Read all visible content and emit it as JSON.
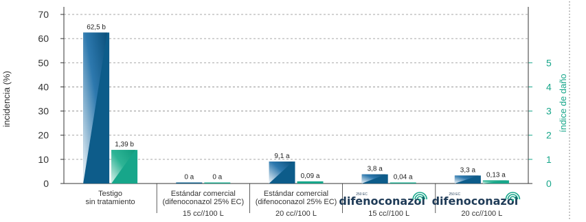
{
  "chart_data": {
    "type": "bar",
    "title": "",
    "ylabel_left": "incidencia (%)",
    "ylabel_right": "índice de daño",
    "ylim_left": [
      0,
      70
    ],
    "ylim_right": [
      0,
      7
    ],
    "yticks_left": [
      "0",
      "10",
      "20",
      "30",
      "40",
      "50",
      "60",
      "70"
    ],
    "yticks_right": [
      "0",
      "1",
      "2",
      "3",
      "4",
      "5"
    ],
    "grid": "dashed horizontal",
    "categories": [
      {
        "lines": [
          "Testigo",
          "sin tratamiento"
        ],
        "brand": "",
        "dose": ""
      },
      {
        "lines": [
          "Estándar comercial",
          "(difenoconazol 25% EC)"
        ],
        "brand": "",
        "dose": "15 cc//100 L"
      },
      {
        "lines": [
          "Estándar comercial",
          "(difenoconazol 25% EC)"
        ],
        "brand": "",
        "dose": "20 cc//100 L"
      },
      {
        "lines": [],
        "brand": "difenoconazol",
        "brand_sup": "250 EC",
        "dose": "15 cc//100 L"
      },
      {
        "lines": [],
        "brand": "difenoconazol",
        "brand_sup": "250 EC",
        "dose": "20 cc//100 L"
      }
    ],
    "series": [
      {
        "axis": "left",
        "color": "#0d5c8a",
        "values": [
          62.5,
          0,
          9.1,
          3.8,
          3.3
        ],
        "labels": [
          "62,5 b",
          "0 a",
          "9,1 a",
          "3,8 a",
          "3,3 a"
        ]
      },
      {
        "axis": "right",
        "color": "#17a68a",
        "values": [
          1.39,
          0,
          0.09,
          0.04,
          0.13
        ],
        "labels": [
          "1,39 b",
          "0 a",
          "0,09 a",
          "0,04 a",
          "0,13 a"
        ]
      }
    ],
    "colors": {
      "left_axis": "#333333",
      "right_axis": "#17a68a",
      "grid": "#888888"
    }
  }
}
